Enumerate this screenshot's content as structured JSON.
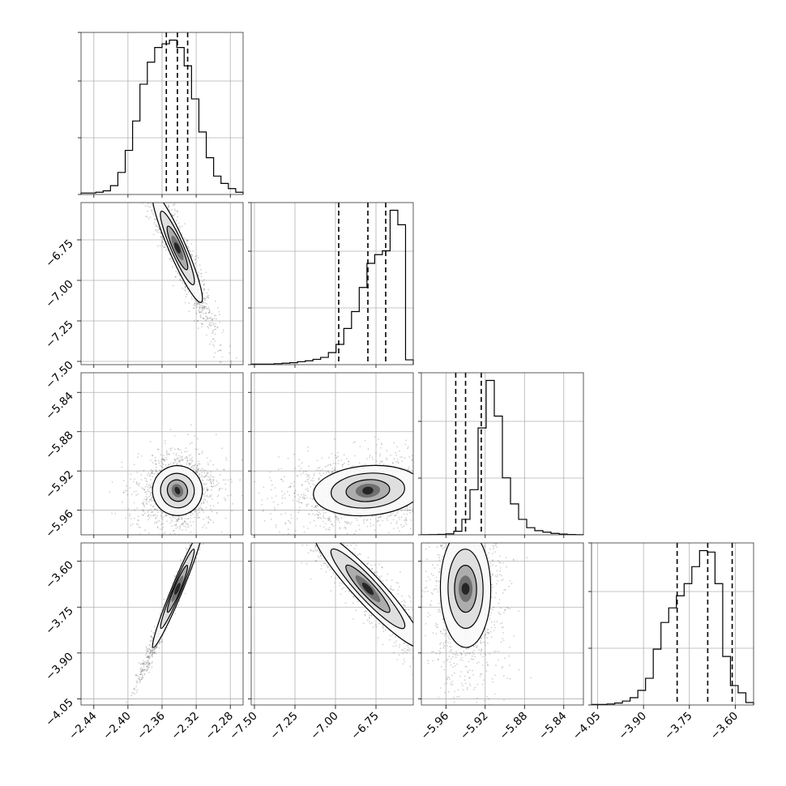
{
  "chart_data": {
    "type": "corner",
    "grid": true,
    "parameters": [
      {
        "range": [
          -2.455,
          -2.265
        ],
        "median": -2.342,
        "quantiles": [
          -2.355,
          -2.342,
          -2.33
        ],
        "sigma": 0.012,
        "ticks": [
          -2.44,
          -2.4,
          -2.36,
          -2.32,
          -2.28
        ],
        "tick_labels": [
          "−2.44",
          "−2.40",
          "−2.36",
          "−2.32",
          "−2.28"
        ]
      },
      {
        "range": [
          -7.52,
          -6.52
        ],
        "median": -6.8,
        "quantiles": [
          -6.98,
          -6.8,
          -6.69
        ],
        "sigma": 0.14,
        "ticks": [
          -7.5,
          -7.25,
          -7.0,
          -6.75
        ],
        "tick_labels": [
          "−7.50",
          "−7.25",
          "−7.00",
          "−6.75"
        ]
      },
      {
        "range": [
          -5.985,
          -5.82
        ],
        "median": -5.94,
        "quantiles": [
          -5.95,
          -5.94,
          -5.924
        ],
        "sigma": 0.01,
        "ticks": [
          -5.96,
          -5.92,
          -5.88,
          -5.84
        ],
        "tick_labels": [
          "−5.96",
          "−5.92",
          "−5.88",
          "−5.84"
        ]
      },
      {
        "range": [
          -4.07,
          -3.54
        ],
        "median": -3.69,
        "quantiles": [
          -3.79,
          -3.69,
          -3.61
        ],
        "sigma": 0.08,
        "ticks": [
          -4.05,
          -3.9,
          -3.75,
          -3.6
        ],
        "tick_labels": [
          "−4.05",
          "−3.90",
          "−3.75",
          "−3.60"
        ]
      }
    ],
    "histograms": [
      [
        2,
        2,
        3,
        5,
        12,
        30,
        60,
        100,
        150,
        180,
        200,
        205,
        210,
        200,
        175,
        130,
        85,
        50,
        25,
        15,
        8,
        3
      ],
      [
        1,
        1,
        1,
        2,
        3,
        4,
        6,
        8,
        11,
        15,
        25,
        42,
        75,
        110,
        160,
        210,
        228,
        236,
        320,
        290,
        10
      ],
      [
        1,
        2,
        4,
        8,
        30,
        130,
        380,
        900,
        1300,
        1000,
        480,
        260,
        130,
        60,
        35,
        22,
        12,
        6,
        3,
        1
      ],
      [
        1,
        1,
        2,
        4,
        8,
        15,
        30,
        55,
        115,
        170,
        200,
        225,
        250,
        285,
        318,
        315,
        250,
        100,
        40,
        25,
        5
      ]
    ],
    "correlations": {
      "1-0": -0.95,
      "2-0": 0.05,
      "2-1": 0.15,
      "3-0": 0.99,
      "3-1": -0.95,
      "3-2": -0.02
    }
  }
}
